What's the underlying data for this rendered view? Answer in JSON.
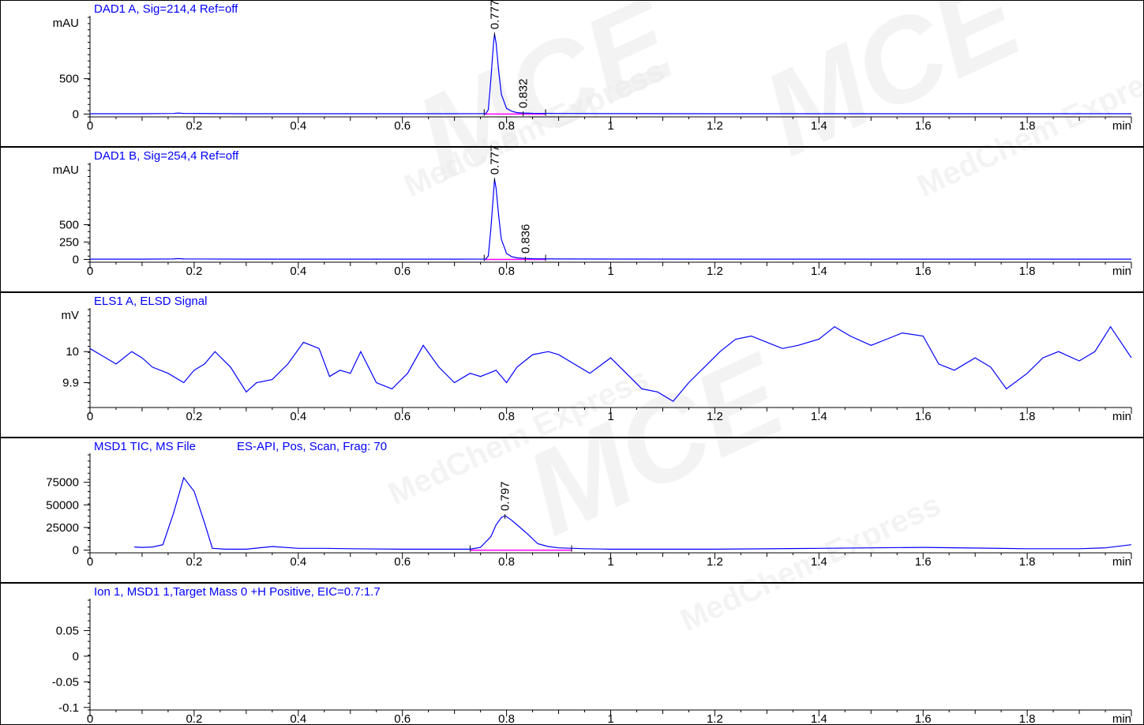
{
  "watermark": {
    "brand": "MCE",
    "subtitle": "MedChem Express"
  },
  "colors": {
    "trace": "#0000ff",
    "baseline": "#ff00ff",
    "panel_title": "#0000ff",
    "text": "#000000"
  },
  "x_axis": {
    "unit_label": "min",
    "min": 0,
    "max": 2.0,
    "major_ticks": [
      0,
      0.2,
      0.4,
      0.6,
      0.8,
      1,
      1.2,
      1.4,
      1.6,
      1.8
    ],
    "tick_labels": [
      "0",
      "0.2",
      "0.4",
      "0.6",
      "0.8",
      "1",
      "1.2",
      "1.4",
      "1.6",
      "1.8"
    ]
  },
  "chart_data": [
    {
      "type": "line",
      "title": "DAD1 A, Sig=214,4 Ref=off",
      "ylabel": "mAU",
      "ylim": [
        -40,
        1300
      ],
      "y_ticks": [
        0,
        500
      ],
      "y_tick_labels": [
        "0",
        "500"
      ],
      "series": [
        {
          "x": [
            0,
            0.1,
            0.16,
            0.17,
            0.18,
            0.3,
            0.5,
            0.7,
            0.76,
            0.765,
            0.77,
            0.775,
            0.777,
            0.78,
            0.785,
            0.79,
            0.8,
            0.81,
            0.82,
            0.832,
            0.85,
            0.9,
            1.0,
            1.2,
            1.4,
            1.6,
            1.8,
            2.0
          ],
          "y": [
            5,
            5,
            8,
            15,
            8,
            5,
            5,
            5,
            6,
            60,
            500,
            1000,
            1130,
            1000,
            600,
            280,
            80,
            40,
            20,
            15,
            10,
            8,
            6,
            5,
            5,
            5,
            5,
            5
          ]
        }
      ],
      "peaks": [
        {
          "rt": 0.777,
          "label": "0.777",
          "y": 1130
        },
        {
          "rt": 0.832,
          "label": "0.832",
          "y": 15
        }
      ],
      "integration_baseline": {
        "x": [
          0.757,
          0.875
        ],
        "y": [
          0,
          0
        ]
      }
    },
    {
      "type": "line",
      "title": "DAD1 B, Sig=254,4 Ref=off",
      "ylabel": "mAU",
      "ylim": [
        -40,
        1300
      ],
      "y_ticks": [
        0,
        250,
        500
      ],
      "y_tick_labels": [
        "0",
        "250",
        "500"
      ],
      "series": [
        {
          "x": [
            0,
            0.1,
            0.16,
            0.17,
            0.18,
            0.3,
            0.5,
            0.7,
            0.76,
            0.765,
            0.77,
            0.775,
            0.777,
            0.78,
            0.785,
            0.79,
            0.8,
            0.81,
            0.82,
            0.836,
            0.85,
            0.9,
            1.0,
            1.2,
            1.4,
            1.6,
            1.8,
            2.0
          ],
          "y": [
            4,
            4,
            6,
            12,
            6,
            4,
            4,
            4,
            5,
            50,
            450,
            950,
            1150,
            1020,
            620,
            290,
            85,
            40,
            22,
            15,
            10,
            7,
            5,
            4,
            4,
            4,
            4,
            4
          ]
        }
      ],
      "peaks": [
        {
          "rt": 0.777,
          "label": "0.777",
          "y": 1150
        },
        {
          "rt": 0.836,
          "label": "0.836",
          "y": 15
        }
      ],
      "integration_baseline": {
        "x": [
          0.757,
          0.875
        ],
        "y": [
          0,
          0
        ]
      }
    },
    {
      "type": "line",
      "title": "ELS1 A, ELSD Signal",
      "ylabel": "mV",
      "ylim": [
        9.82,
        10.12
      ],
      "y_ticks": [
        9.9,
        10
      ],
      "y_tick_labels": [
        "9.9",
        "10"
      ],
      "series": [
        {
          "x": [
            0,
            0.02,
            0.05,
            0.08,
            0.1,
            0.12,
            0.15,
            0.18,
            0.2,
            0.22,
            0.24,
            0.27,
            0.3,
            0.32,
            0.35,
            0.38,
            0.41,
            0.44,
            0.46,
            0.48,
            0.5,
            0.52,
            0.55,
            0.58,
            0.61,
            0.64,
            0.67,
            0.7,
            0.73,
            0.75,
            0.78,
            0.8,
            0.82,
            0.85,
            0.88,
            0.9,
            0.93,
            0.96,
            1.0,
            1.03,
            1.06,
            1.09,
            1.12,
            1.15,
            1.18,
            1.21,
            1.24,
            1.27,
            1.3,
            1.33,
            1.36,
            1.4,
            1.43,
            1.46,
            1.5,
            1.53,
            1.56,
            1.6,
            1.63,
            1.66,
            1.7,
            1.73,
            1.76,
            1.8,
            1.83,
            1.86,
            1.9,
            1.93,
            1.96,
            2.0
          ],
          "y": [
            10.01,
            9.99,
            9.96,
            10.0,
            9.98,
            9.95,
            9.93,
            9.9,
            9.94,
            9.96,
            10.0,
            9.95,
            9.87,
            9.9,
            9.91,
            9.96,
            10.03,
            10.01,
            9.92,
            9.94,
            9.93,
            10.0,
            9.9,
            9.88,
            9.93,
            10.02,
            9.95,
            9.9,
            9.93,
            9.92,
            9.94,
            9.9,
            9.95,
            9.99,
            10.0,
            9.99,
            9.96,
            9.93,
            9.98,
            9.93,
            9.88,
            9.87,
            9.84,
            9.9,
            9.95,
            10.0,
            10.04,
            10.05,
            10.03,
            10.01,
            10.02,
            10.04,
            10.08,
            10.05,
            10.02,
            10.04,
            10.06,
            10.05,
            9.96,
            9.94,
            9.98,
            9.95,
            9.88,
            9.93,
            9.98,
            10.0,
            9.97,
            10.0,
            10.08,
            9.98
          ]
        }
      ]
    },
    {
      "type": "line",
      "title": "MSD1 TIC, MS File",
      "subtitle": "ES-API, Pos, Scan, Frag: 70",
      "ylabel": "",
      "ylim": [
        -3000,
        100000
      ],
      "y_ticks": [
        0,
        25000,
        50000,
        75000
      ],
      "y_tick_labels": [
        "0",
        "25000",
        "50000",
        "75000"
      ],
      "series": [
        {
          "x": [
            0.085,
            0.1,
            0.12,
            0.14,
            0.16,
            0.18,
            0.2,
            0.22,
            0.235,
            0.26,
            0.3,
            0.35,
            0.4,
            0.45,
            0.5,
            0.6,
            0.7,
            0.73,
            0.75,
            0.77,
            0.78,
            0.79,
            0.797,
            0.8,
            0.81,
            0.82,
            0.84,
            0.86,
            0.88,
            0.9,
            0.95,
            1.0,
            1.2,
            1.4,
            1.6,
            1.8,
            1.9,
            1.95,
            2.0
          ],
          "y": [
            3500,
            3000,
            3500,
            6000,
            40000,
            80000,
            65000,
            30000,
            2000,
            1000,
            1000,
            4000,
            2000,
            2000,
            1500,
            1000,
            1000,
            1000,
            3000,
            15000,
            28000,
            36000,
            38000,
            37000,
            33000,
            28000,
            18000,
            7000,
            4000,
            2500,
            1500,
            1000,
            1000,
            2000,
            3000,
            1500,
            1500,
            2500,
            6000
          ]
        }
      ],
      "peaks": [
        {
          "rt": 0.797,
          "label": "0.797",
          "y": 38000
        }
      ],
      "integration_baseline": {
        "x": [
          0.73,
          0.925
        ],
        "y": [
          0,
          0
        ]
      }
    },
    {
      "type": "line",
      "title": "Ion 1, MSD1 1,Target Mass 0 +H Positive, EIC=0.7:1.7",
      "ylabel": "",
      "ylim": [
        -0.105,
        0.1
      ],
      "y_ticks": [
        -0.1,
        -0.05,
        0,
        0.05
      ],
      "y_tick_labels": [
        "-0.1",
        "-0.05",
        "0",
        "0.05"
      ],
      "series": [
        {
          "x": [
            0,
            2.0
          ],
          "y": [
            0,
            0
          ],
          "visible": false
        }
      ]
    }
  ]
}
